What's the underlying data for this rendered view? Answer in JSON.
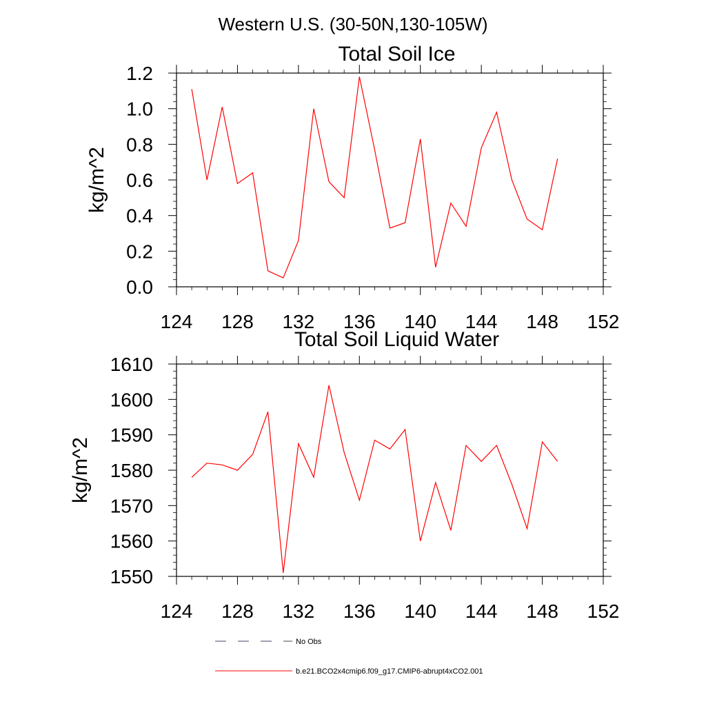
{
  "figure": {
    "title": "Western U.S. (30-50N,130-105W)"
  },
  "colors": {
    "series": "#ff0000",
    "obs": "#404060",
    "axis": "#000000"
  },
  "legend": {
    "items": [
      {
        "label": "No Obs",
        "style": "dashed",
        "color": "#404060"
      },
      {
        "label": "b.e21.BCO2x4cmip6.f09_g17.CMIP6-abrupt4xCO2.001",
        "style": "solid",
        "color": "#ff0000"
      }
    ]
  },
  "chart_data": [
    {
      "type": "line",
      "title": "Total Soil Ice",
      "xlabel": "",
      "ylabel": "kg/m^2",
      "xlim": [
        124,
        152
      ],
      "ylim": [
        0.0,
        1.2
      ],
      "xticks": [
        124,
        128,
        132,
        136,
        140,
        144,
        148,
        152
      ],
      "yticks": [
        0.0,
        0.2,
        0.4,
        0.6,
        0.8,
        1.0,
        1.2
      ],
      "ytick_labels": [
        "0.0",
        "0.2",
        "0.4",
        "0.6",
        "0.8",
        "1.0",
        "1.2"
      ],
      "grid": false,
      "x": [
        125,
        126,
        127,
        128,
        129,
        130,
        131,
        132,
        133,
        134,
        135,
        136,
        137,
        138,
        139,
        140,
        141,
        142,
        143,
        144,
        145,
        146,
        147,
        148,
        149
      ],
      "series": [
        {
          "values": [
            1.11,
            0.6,
            1.01,
            0.58,
            0.64,
            0.09,
            0.05,
            0.26,
            1.0,
            0.59,
            0.5,
            1.18,
            0.77,
            0.33,
            0.36,
            0.83,
            0.11,
            0.47,
            0.34,
            0.78,
            0.98,
            0.6,
            0.38,
            0.32,
            0.72
          ],
          "color": "#ff0000"
        }
      ]
    },
    {
      "type": "line",
      "title": "Total Soil Liquid Water",
      "xlabel": "",
      "ylabel": "kg/m^2",
      "xlim": [
        124,
        152
      ],
      "ylim": [
        1550,
        1610
      ],
      "xticks": [
        124,
        128,
        132,
        136,
        140,
        144,
        148,
        152
      ],
      "yticks": [
        1550,
        1560,
        1570,
        1580,
        1590,
        1600,
        1610
      ],
      "ytick_labels": [
        "1550",
        "1560",
        "1570",
        "1580",
        "1590",
        "1600",
        "1610"
      ],
      "grid": false,
      "x": [
        125,
        126,
        127,
        128,
        129,
        130,
        131,
        132,
        133,
        134,
        135,
        136,
        137,
        138,
        139,
        140,
        141,
        142,
        143,
        144,
        145,
        146,
        147,
        148,
        149
      ],
      "series": [
        {
          "values": [
            1578.0,
            1582.0,
            1581.5,
            1580.0,
            1584.5,
            1596.5,
            1551.0,
            1587.5,
            1578.0,
            1604.0,
            1585.0,
            1571.5,
            1588.5,
            1586.0,
            1591.5,
            1560.0,
            1576.5,
            1563.0,
            1587.0,
            1582.5,
            1587.0,
            1576.0,
            1563.5,
            1588.0,
            1582.5
          ],
          "color": "#ff0000"
        }
      ]
    }
  ]
}
